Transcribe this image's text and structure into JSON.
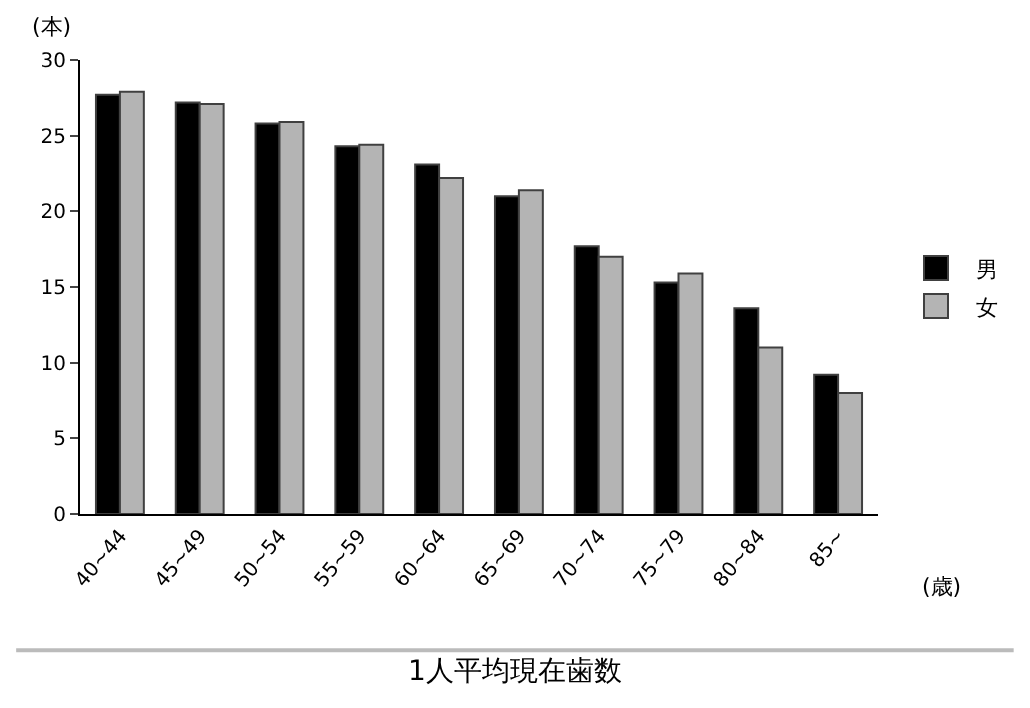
{
  "chart_data": {
    "type": "bar",
    "title": "1人平均現在歯数",
    "ylabel": "(本)",
    "xlabel": "(歳)",
    "categories": [
      "40~44",
      "45~49",
      "50~54",
      "55~59",
      "60~64",
      "65~69",
      "70~74",
      "75~79",
      "80~84",
      "85~"
    ],
    "series": [
      {
        "name": "男",
        "color": "#000000",
        "values": [
          27.7,
          27.2,
          25.8,
          24.3,
          23.1,
          21.0,
          17.7,
          15.3,
          13.6,
          9.2
        ]
      },
      {
        "name": "女",
        "color": "#b4b4b4",
        "values": [
          27.9,
          27.1,
          25.9,
          24.4,
          22.2,
          21.4,
          17.0,
          15.9,
          11.0,
          8.0
        ]
      }
    ],
    "ylim": [
      0,
      30
    ],
    "yticks": [
      0,
      5,
      10,
      15,
      20,
      25,
      30
    ],
    "grid": false,
    "legend": "right"
  }
}
